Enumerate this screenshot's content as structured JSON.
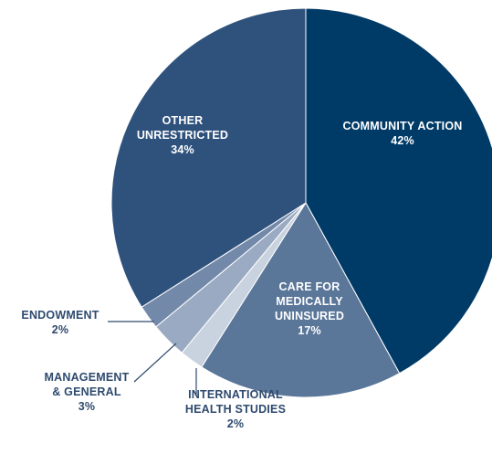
{
  "chart_data": {
    "type": "pie",
    "title": "",
    "slices": [
      {
        "label_lines": [
          "COMMUNITY ACTION"
        ],
        "value_label": "42%",
        "value": 42,
        "color": "#003a66"
      },
      {
        "label_lines": [
          "CARE FOR",
          "MEDICALLY",
          "UNINSURED"
        ],
        "value_label": "17%",
        "value": 17,
        "color": "#5a7699"
      },
      {
        "label_lines": [
          "INTERNATIONAL",
          "HEALTH STUDIES"
        ],
        "value_label": "2%",
        "value": 2,
        "color": "#c9d2df"
      },
      {
        "label_lines": [
          "MANAGEMENT",
          "& GENERAL"
        ],
        "value_label": "3%",
        "value": 3,
        "color": "#9aaac2"
      },
      {
        "label_lines": [
          "ENDOWMENT"
        ],
        "value_label": "2%",
        "value": 2,
        "color": "#7389a9"
      },
      {
        "label_lines": [
          "OTHER",
          "UNRESTRICTED"
        ],
        "value_label": "34%",
        "value": 34,
        "color": "#2f527d"
      }
    ],
    "legend": "none"
  }
}
